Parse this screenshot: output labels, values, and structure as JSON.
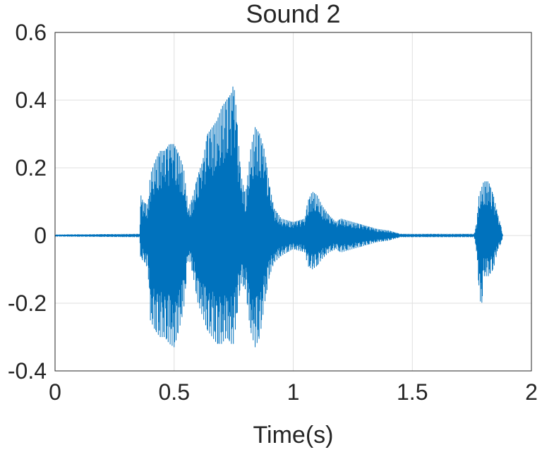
{
  "chart_data": {
    "type": "line",
    "title": "Sound 2",
    "xlabel": "Time(s)",
    "ylabel": "",
    "xlim": [
      0,
      2
    ],
    "ylim": [
      -0.4,
      0.6
    ],
    "xticks": [
      0,
      0.5,
      1,
      1.5,
      2
    ],
    "xtick_labels": [
      "0",
      "0.5",
      "1",
      "1.5",
      "2"
    ],
    "yticks": [
      -0.4,
      -0.2,
      0,
      0.2,
      0.4,
      0.6
    ],
    "ytick_labels": [
      "-0.4",
      "-0.2",
      "0",
      "0.2",
      "0.4",
      "0.6"
    ],
    "grid": true,
    "legend": "none",
    "series_color": "#0072bd",
    "series": [
      {
        "style": "waveform",
        "envelope_max": [
          [
            0,
            0.003
          ],
          [
            0.355,
            0.005
          ],
          [
            0.36,
            0.12
          ],
          [
            0.37,
            0.1
          ],
          [
            0.39,
            0.09
          ],
          [
            0.4,
            0.18
          ],
          [
            0.42,
            0.22
          ],
          [
            0.44,
            0.25
          ],
          [
            0.46,
            0.25
          ],
          [
            0.48,
            0.27
          ],
          [
            0.5,
            0.27
          ],
          [
            0.52,
            0.24
          ],
          [
            0.54,
            0.2
          ],
          [
            0.56,
            0.08
          ],
          [
            0.58,
            0.12
          ],
          [
            0.6,
            0.18
          ],
          [
            0.62,
            0.22
          ],
          [
            0.64,
            0.3
          ],
          [
            0.66,
            0.32
          ],
          [
            0.68,
            0.34
          ],
          [
            0.7,
            0.38
          ],
          [
            0.72,
            0.4
          ],
          [
            0.74,
            0.42
          ],
          [
            0.75,
            0.45
          ],
          [
            0.76,
            0.38
          ],
          [
            0.78,
            0.18
          ],
          [
            0.8,
            0.12
          ],
          [
            0.82,
            0.25
          ],
          [
            0.84,
            0.32
          ],
          [
            0.86,
            0.3
          ],
          [
            0.88,
            0.25
          ],
          [
            0.9,
            0.15
          ],
          [
            0.92,
            0.08
          ],
          [
            0.95,
            0.05
          ],
          [
            1.0,
            0.04
          ],
          [
            1.05,
            0.05
          ],
          [
            1.06,
            0.1
          ],
          [
            1.08,
            0.13
          ],
          [
            1.1,
            0.12
          ],
          [
            1.12,
            0.09
          ],
          [
            1.15,
            0.06
          ],
          [
            1.18,
            0.04
          ],
          [
            1.2,
            0.05
          ],
          [
            1.25,
            0.04
          ],
          [
            1.3,
            0.03
          ],
          [
            1.35,
            0.02
          ],
          [
            1.4,
            0.015
          ],
          [
            1.45,
            0.005
          ],
          [
            1.76,
            0.005
          ],
          [
            1.77,
            0.04
          ],
          [
            1.78,
            0.12
          ],
          [
            1.8,
            0.16
          ],
          [
            1.82,
            0.16
          ],
          [
            1.84,
            0.12
          ],
          [
            1.86,
            0.06
          ],
          [
            1.875,
            0.02
          ],
          [
            1.88,
            0.0
          ]
        ],
        "envelope_min": [
          [
            0,
            -0.003
          ],
          [
            0.355,
            -0.005
          ],
          [
            0.36,
            -0.08
          ],
          [
            0.37,
            -0.07
          ],
          [
            0.39,
            -0.1
          ],
          [
            0.4,
            -0.25
          ],
          [
            0.42,
            -0.28
          ],
          [
            0.44,
            -0.3
          ],
          [
            0.46,
            -0.3
          ],
          [
            0.48,
            -0.32
          ],
          [
            0.5,
            -0.33
          ],
          [
            0.52,
            -0.28
          ],
          [
            0.54,
            -0.22
          ],
          [
            0.56,
            -0.06
          ],
          [
            0.58,
            -0.12
          ],
          [
            0.6,
            -0.2
          ],
          [
            0.62,
            -0.24
          ],
          [
            0.64,
            -0.28
          ],
          [
            0.66,
            -0.3
          ],
          [
            0.68,
            -0.32
          ],
          [
            0.7,
            -0.32
          ],
          [
            0.72,
            -0.3
          ],
          [
            0.74,
            -0.32
          ],
          [
            0.75,
            -0.32
          ],
          [
            0.76,
            -0.26
          ],
          [
            0.78,
            -0.14
          ],
          [
            0.8,
            -0.16
          ],
          [
            0.82,
            -0.28
          ],
          [
            0.84,
            -0.33
          ],
          [
            0.86,
            -0.3
          ],
          [
            0.88,
            -0.2
          ],
          [
            0.9,
            -0.12
          ],
          [
            0.92,
            -0.08
          ],
          [
            0.95,
            -0.06
          ],
          [
            1.0,
            -0.04
          ],
          [
            1.05,
            -0.05
          ],
          [
            1.06,
            -0.09
          ],
          [
            1.08,
            -0.1
          ],
          [
            1.1,
            -0.09
          ],
          [
            1.12,
            -0.07
          ],
          [
            1.15,
            -0.05
          ],
          [
            1.18,
            -0.04
          ],
          [
            1.2,
            -0.05
          ],
          [
            1.25,
            -0.04
          ],
          [
            1.3,
            -0.03
          ],
          [
            1.35,
            -0.02
          ],
          [
            1.4,
            -0.015
          ],
          [
            1.45,
            -0.005
          ],
          [
            1.76,
            -0.005
          ],
          [
            1.77,
            -0.05
          ],
          [
            1.78,
            -0.16
          ],
          [
            1.79,
            -0.22
          ],
          [
            1.8,
            -0.12
          ],
          [
            1.82,
            -0.12
          ],
          [
            1.84,
            -0.1
          ],
          [
            1.86,
            -0.04
          ],
          [
            1.875,
            -0.02
          ],
          [
            1.88,
            0.0
          ]
        ]
      }
    ]
  }
}
